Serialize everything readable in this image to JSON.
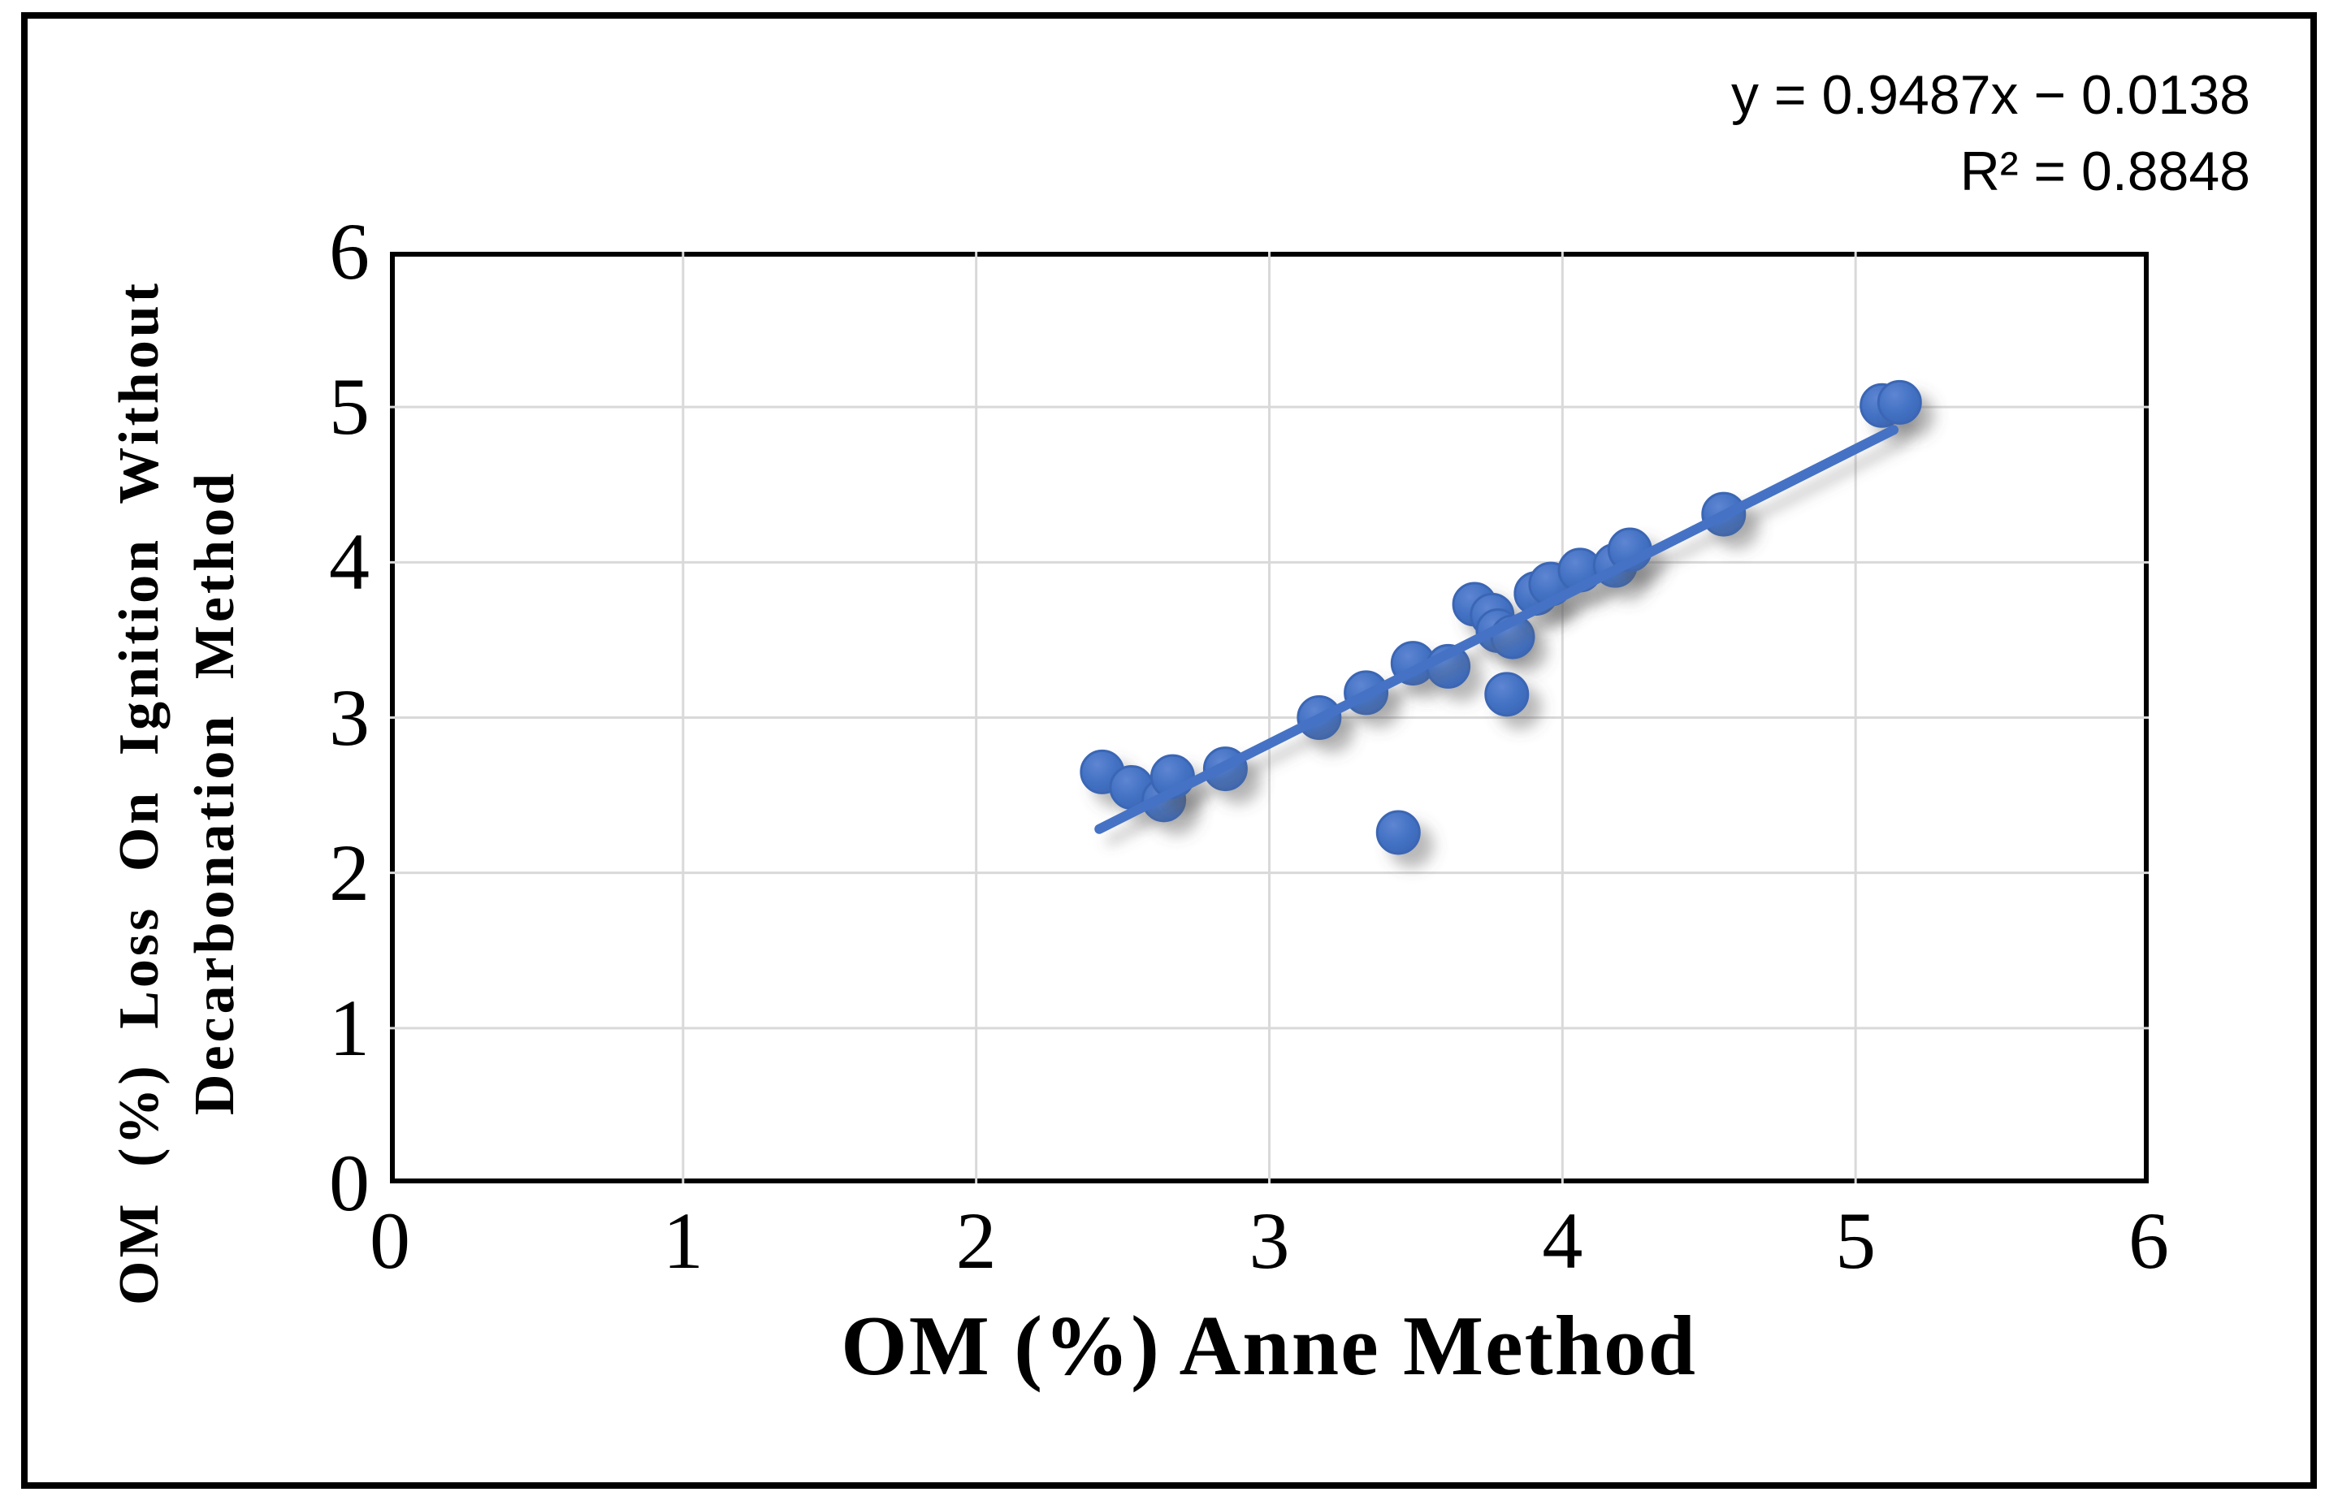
{
  "chart_data": {
    "type": "scatter",
    "xlabel": "OM (%) Anne Method",
    "ylabel_lines": [
      "OM (%) Loss On Ignition Without",
      "Decarbonation Method"
    ],
    "xlim": [
      0,
      6
    ],
    "ylim": [
      0,
      6
    ],
    "xticks": [
      "0",
      "1",
      "2",
      "3",
      "4",
      "5",
      "6"
    ],
    "yticks": [
      "0",
      "1",
      "2",
      "3",
      "4",
      "5",
      "6"
    ],
    "grid": true,
    "legend": "none",
    "points": [
      [
        2.43,
        2.65
      ],
      [
        2.53,
        2.55
      ],
      [
        2.64,
        2.47
      ],
      [
        2.67,
        2.62
      ],
      [
        2.85,
        2.67
      ],
      [
        3.17,
        3.0
      ],
      [
        3.33,
        3.16
      ],
      [
        3.44,
        2.26
      ],
      [
        3.49,
        3.35
      ],
      [
        3.61,
        3.33
      ],
      [
        3.7,
        3.73
      ],
      [
        3.76,
        3.66
      ],
      [
        3.78,
        3.56
      ],
      [
        3.83,
        3.52
      ],
      [
        3.81,
        3.15
      ],
      [
        3.91,
        3.8
      ],
      [
        3.96,
        3.86
      ],
      [
        4.06,
        3.95
      ],
      [
        4.18,
        3.98
      ],
      [
        4.23,
        4.08
      ],
      [
        4.55,
        4.31
      ],
      [
        5.09,
        5.01
      ],
      [
        5.15,
        5.03
      ]
    ],
    "trendline": {
      "slope": 0.9487,
      "intercept": -0.0138,
      "x_start": 2.42,
      "x_end": 5.13
    },
    "annotation": {
      "equation": "y = 0.9487x − 0.0138",
      "r_squared": "R² = 0.8848"
    },
    "colors": {
      "marker": "#4472C4",
      "marker_light": "#5E86D2",
      "marker_dark": "#3B67B6",
      "marker_edge": "#3A66B5",
      "trendline": "#4472C4",
      "grid": "#D9D9D9",
      "axis": "#000000"
    }
  }
}
